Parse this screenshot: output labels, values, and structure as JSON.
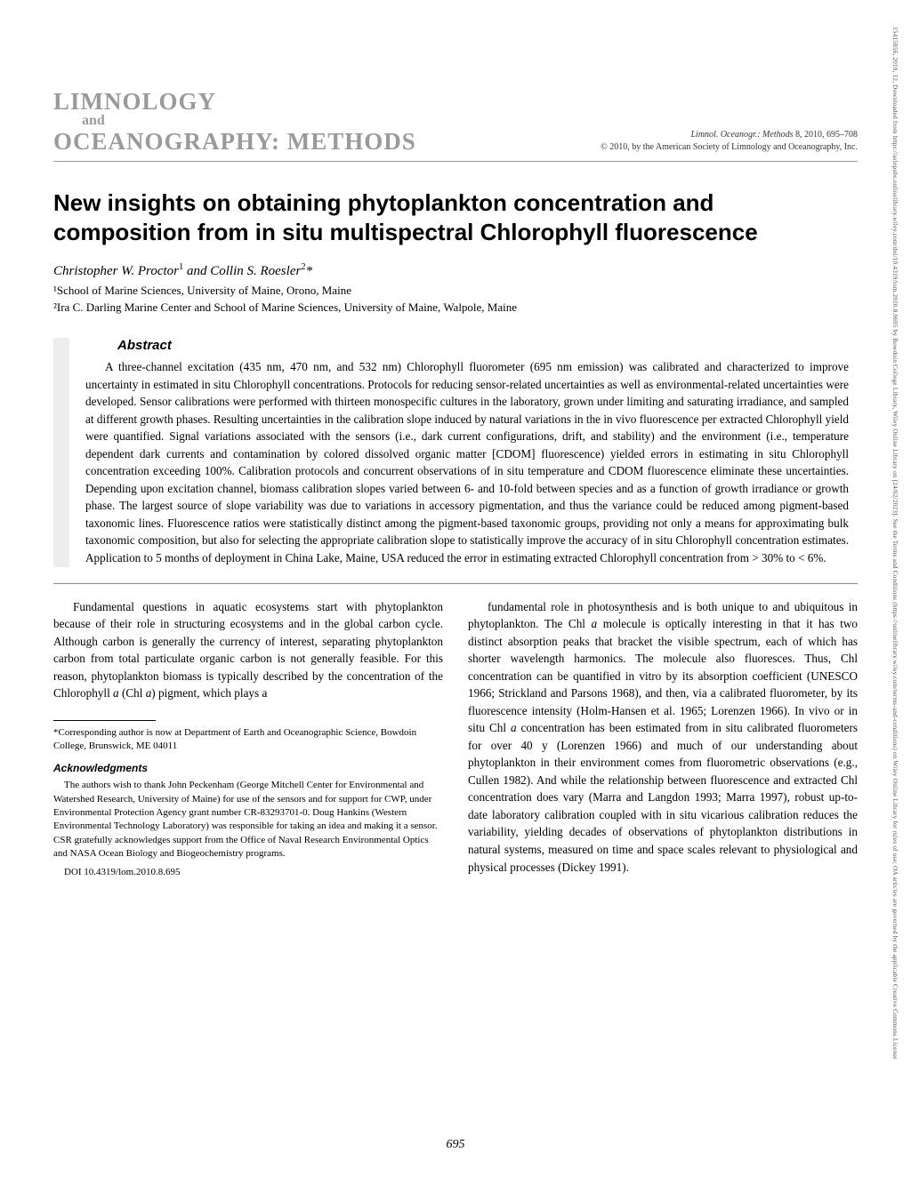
{
  "journal": {
    "line1": "LIMNOLOGY",
    "line2": "and",
    "line3": "OCEANOGRAPHY: METHODS",
    "citation_italic": "Limnol. Oceanogr.: Methods",
    "citation_rest": " 8, 2010, 695–708",
    "copyright": "© 2010, by the American Society of Limnology and Oceanography, Inc."
  },
  "article": {
    "title": "New insights on obtaining phytoplankton concentration and composition from in situ multispectral Chlorophyll fluorescence",
    "authors_html": "Christopher W. Proctor¹ and Collin S. Roesler²*",
    "affil1": "¹School of Marine Sciences, University of Maine, Orono, Maine",
    "affil2": "²Ira C. Darling Marine Center and School of Marine Sciences, University of Maine, Walpole, Maine"
  },
  "abstract": {
    "heading": "Abstract",
    "text": "A three-channel excitation (435 nm, 470 nm, and 532 nm) Chlorophyll fluorometer (695 nm emission) was calibrated and characterized to improve uncertainty in estimated in situ Chlorophyll concentrations. Protocols for reducing sensor-related uncertainties as well as environmental-related uncertainties were developed. Sensor calibrations were performed with thirteen monospecific cultures in the laboratory, grown under limiting and saturating irradiance, and sampled at different growth phases. Resulting uncertainties in the calibration slope induced by natural variations in the in vivo fluorescence per extracted Chlorophyll yield were quantified. Signal variations associated with the sensors (i.e., dark current configurations, drift, and stability) and the environment (i.e., temperature dependent dark currents and contamination by colored dissolved organic matter [CDOM] fluorescence) yielded errors in estimating in situ Chlorophyll concentration exceeding 100%. Calibration protocols and concurrent observations of in situ temperature and CDOM fluorescence eliminate these uncertainties. Depending upon excitation channel, biomass calibration slopes varied between 6- and 10-fold between species and as a function of growth irradiance or growth phase. The largest source of slope variability was due to variations in accessory pigmentation, and thus the variance could be reduced among pigment-based taxonomic lines. Fluorescence ratios were statistically distinct among the pigment-based taxonomic groups, providing not only a means for approximating bulk taxonomic composition, but also for selecting the appropriate calibration slope to statistically improve the accuracy of in situ Chlorophyll concentration estimates. Application to 5 months of deployment in China Lake, Maine, USA reduced the error in estimating extracted Chlorophyll concentration from > 30% to < 6%."
  },
  "body": {
    "col1_intro_a": "Fundamental questions in aquatic ecosystems start with phytoplankton because of their role in structuring ecosystems and in the global carbon cycle. Although carbon is generally the currency of interest, separating phytoplankton carbon from total particulate organic carbon is not generally feasible. For this reason, phytoplankton biomass is typically described by the concentration of the Chlorophyll ",
    "col1_chl": "a",
    "col1_intro_b": " (Chl ",
    "col1_intro_c": ") pigment, which plays a",
    "col2_a": "fundamental role in photosynthesis and is both unique to and ubiquitous in phytoplankton. The Chl ",
    "col2_b": " molecule is optically interesting in that it has two distinct absorption peaks that bracket the visible spectrum, each of which has shorter wavelength harmonics. The molecule also fluoresces. Thus, Chl concentration can be quantified in vitro by its absorption coefficient (UNESCO 1966; Strickland and Parsons 1968), and then, via a calibrated fluorometer, by its fluorescence intensity (Holm-Hansen et al. 1965; Lorenzen 1966). In vivo or in situ Chl ",
    "col2_c": " concentration has been estimated from in situ calibrated fluorometers for over 40 y (Lorenzen 1966) and much of our understanding about phytoplankton in their environment comes from fluorometric observations (e.g., Cullen 1982). And while the relationship between fluorescence and extracted Chl concentration does vary (Marra and Langdon 1993; Marra 1997), robust up-to-date laboratory calibration coupled with in situ vicarious calibration reduces the variability, yielding decades of observations of phytoplankton distributions in natural systems, measured on time and space scales relevant to physiological and physical processes (Dickey 1991)."
  },
  "footnotes": {
    "corresponding": "*Corresponding author is now at Department of Earth and Oceanographic Science, Bowdoin College, Brunswick, ME 04011",
    "ack_head": "Acknowledgments",
    "ack_text": "The authors wish to thank John Peckenham (George Mitchell Center for Environmental and Watershed Research, University of Maine) for use of the sensors and for support for CWP, under Environmental Protection Agency grant number CR-83293701-0. Doug Hankins (Western Environmental Technology Laboratory) was responsible for taking an idea and making it a sensor. CSR gratefully acknowledges support from the Office of Naval Research Environmental Optics and NASA Ocean Biology and Biogeochemistry programs.",
    "doi": "DOI 10.4319/lom.2010.8.695"
  },
  "pagenum": "695",
  "sidetext": "15415856, 2010, 12, Downloaded from https://aslopubs.onlinelibrary.wiley.com/doi/10.4319/lom.2010.8.0695 by Bowdoin College Library, Wiley Online Library on [24/02/2023]. See the Terms and Conditions (https://onlinelibrary.wiley.com/terms-and-conditions) on Wiley Online Library for rules of use; OA articles are governed by the applicable Creative Commons License"
}
